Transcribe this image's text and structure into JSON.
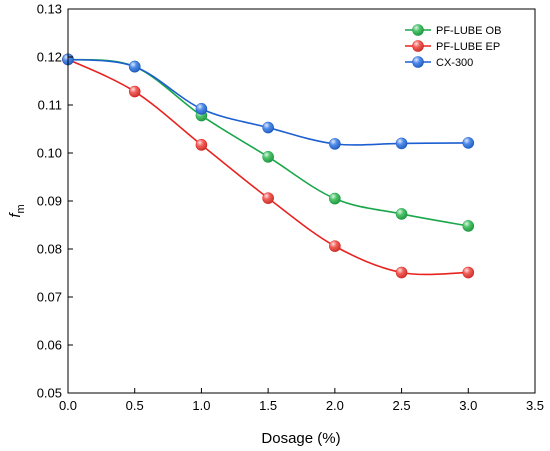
{
  "chart_data": {
    "type": "line",
    "title": "",
    "xlabel": "Dosage (%)",
    "ylabel_main": "f",
    "ylabel_sub": "m",
    "xlim": [
      0,
      3.5
    ],
    "ylim": [
      0.05,
      0.13
    ],
    "x_ticks": [
      "0.0",
      "0.5",
      "1.0",
      "1.5",
      "2.0",
      "2.5",
      "3.0",
      "3.5"
    ],
    "y_ticks": [
      "0.05",
      "0.06",
      "0.07",
      "0.08",
      "0.09",
      "0.10",
      "0.11",
      "0.12",
      "0.13"
    ],
    "grid": false,
    "legend_position": "top-right",
    "x": [
      0.0,
      0.5,
      1.0,
      1.5,
      2.0,
      2.5,
      3.0
    ],
    "series": [
      {
        "name": "PF-LUBE OB",
        "color": "#1aa64a",
        "marker": "#2db84f",
        "values": [
          0.1195,
          0.118,
          0.1078,
          0.0992,
          0.0905,
          0.0873,
          0.0848
        ]
      },
      {
        "name": "PF-LUBE EP",
        "color": "#e8231f",
        "marker": "#f0413a",
        "values": [
          0.1195,
          0.1128,
          0.1017,
          0.0906,
          0.0806,
          0.0751,
          0.0751
        ]
      },
      {
        "name": "CX-300",
        "color": "#1c5fd0",
        "marker": "#2f76e6",
        "values": [
          0.1195,
          0.118,
          0.1092,
          0.1053,
          0.1019,
          0.102,
          0.1021
        ]
      }
    ]
  }
}
